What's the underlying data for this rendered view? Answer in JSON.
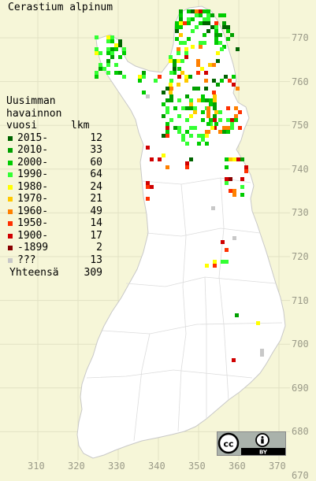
{
  "title": "Cerastium alpinum",
  "legend": {
    "header": [
      "Uusimman",
      "havainnon",
      "vuosi"
    ],
    "count_header": "lkm",
    "rows": [
      {
        "label": "2015-",
        "count": "12",
        "color": "#006400"
      },
      {
        "label": "2010-",
        "count": "33",
        "color": "#00a000"
      },
      {
        "label": "2000-",
        "count": "60",
        "color": "#00cc00"
      },
      {
        "label": "1990-",
        "count": "64",
        "color": "#33ff33"
      },
      {
        "label": "1980-",
        "count": "24",
        "color": "#ffff00"
      },
      {
        "label": "1970-",
        "count": "21",
        "color": "#ffc800"
      },
      {
        "label": "1960-",
        "count": "49",
        "color": "#ff8000"
      },
      {
        "label": "1950-",
        "count": "14",
        "color": "#ff3000"
      },
      {
        "label": "1900-",
        "count": "17",
        "color": "#d00000"
      },
      {
        "label": "-1899",
        "count": "2",
        "color": "#880000"
      },
      {
        "label": "???",
        "count": "13",
        "color": "#c8c8c8"
      }
    ],
    "total_label": "Yhteensä",
    "total_count": "309"
  },
  "y_axis_labels": [
    "770",
    "760",
    "750",
    "740",
    "730",
    "720",
    "710",
    "700",
    "690",
    "680",
    "670"
  ],
  "x_axis_labels": [
    "310",
    "320",
    "330",
    "340",
    "350",
    "360",
    "370"
  ],
  "license_badge": {
    "text": "BY",
    "icon": "cc-by-icon"
  }
}
